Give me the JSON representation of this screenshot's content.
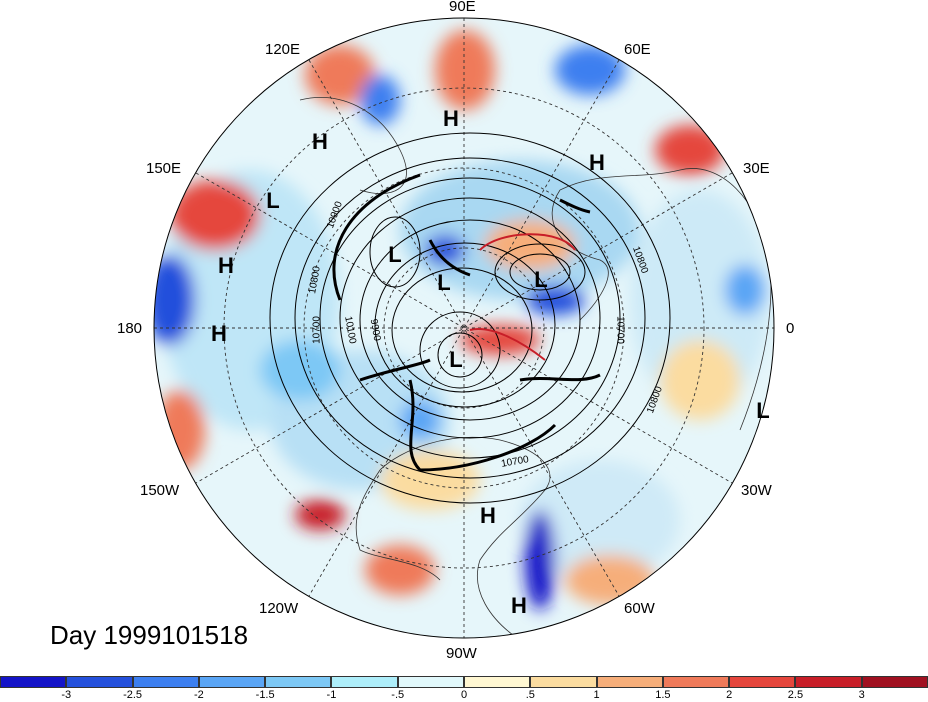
{
  "title": "Day 1999101518",
  "longitude_labels": {
    "lon_90E": "90E",
    "lon_60E": "60E",
    "lon_120E": "120E",
    "lon_150E": "150E",
    "lon_30E": "30E",
    "lon_180": "180",
    "lon_0": "0",
    "lon_150W": "150W",
    "lon_30W": "30W",
    "lon_120W": "120W",
    "lon_60W": "60W",
    "lon_90W": "90W"
  },
  "pressure_centers": [
    {
      "label": "H"
    },
    {
      "label": "H"
    },
    {
      "label": "H"
    },
    {
      "label": "L"
    },
    {
      "label": "H"
    },
    {
      "label": "H"
    },
    {
      "label": "L"
    },
    {
      "label": "L"
    },
    {
      "label": "L"
    },
    {
      "label": "L"
    },
    {
      "label": "L"
    },
    {
      "label": "H"
    },
    {
      "label": "H"
    }
  ],
  "contour_labels": [
    "10900",
    "10800",
    "10700",
    "10100",
    "9900",
    "10800",
    "10700",
    "10800",
    "10700"
  ],
  "colorbar": {
    "ticks": [
      "-3",
      "-2.5",
      "-2",
      "-1.5",
      "-1",
      "-.5",
      "0",
      ".5",
      "1",
      "1.5",
      "2",
      "2.5",
      "3"
    ],
    "colors": [
      "#1414c8",
      "#2450dc",
      "#3c7ff0",
      "#5aa5f5",
      "#7dc8f5",
      "#aeeefa",
      "#e1f8fb",
      "#fff7d2",
      "#fbdca0",
      "#f6ae7a",
      "#ef7a5a",
      "#e5463c",
      "#c81e28",
      "#a01020"
    ]
  }
}
